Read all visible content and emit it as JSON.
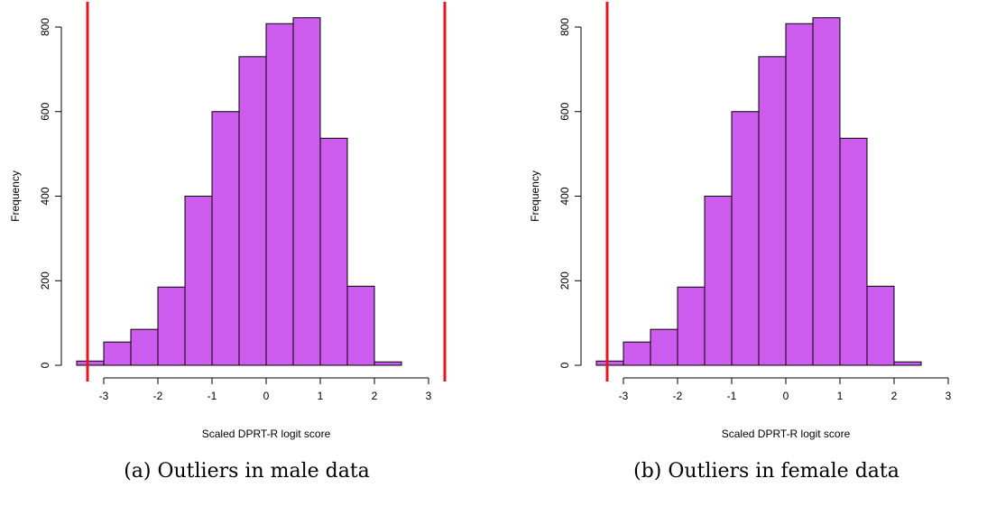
{
  "chart_data": [
    {
      "type": "bar",
      "xlabel": "Scaled DPRT-R logit score",
      "ylabel": "Frequency",
      "bin_edges": [
        -3.5,
        -3.0,
        -2.5,
        -2.0,
        -1.5,
        -1.0,
        -0.5,
        0.0,
        0.5,
        1.0,
        1.5,
        2.0,
        2.5
      ],
      "values": [
        10,
        55,
        85,
        185,
        400,
        600,
        730,
        808,
        822,
        537,
        187,
        8
      ],
      "xlim": [
        -3.5,
        3.0
      ],
      "ylim": [
        0,
        800
      ],
      "xticks": [
        "-3",
        "-2",
        "-1",
        "0",
        "1",
        "2",
        "3"
      ],
      "yticks": [
        "0",
        "200",
        "400",
        "600",
        "800"
      ],
      "bar_color": "#CC5DEE",
      "vlines": [
        -3.3,
        3.3
      ],
      "vline_color": "#E8141B",
      "caption": "(a) Outliers in male data"
    },
    {
      "type": "bar",
      "xlabel": "Scaled DPRT-R logit score",
      "ylabel": "Frequency",
      "bin_edges": [
        -3.5,
        -3.0,
        -2.5,
        -2.0,
        -1.5,
        -1.0,
        -0.5,
        0.0,
        0.5,
        1.0,
        1.5,
        2.0,
        2.5
      ],
      "values": [
        10,
        55,
        85,
        185,
        400,
        600,
        730,
        808,
        822,
        537,
        187,
        8
      ],
      "xlim": [
        -3.5,
        3.0
      ],
      "ylim": [
        0,
        800
      ],
      "xticks": [
        "-3",
        "-2",
        "-1",
        "0",
        "1",
        "2",
        "3"
      ],
      "yticks": [
        "0",
        "200",
        "400",
        "600",
        "800"
      ],
      "bar_color": "#CC5DEE",
      "vlines": [
        -3.3
      ],
      "vline_color": "#E8141B",
      "caption": "(b) Outliers in female data"
    }
  ]
}
